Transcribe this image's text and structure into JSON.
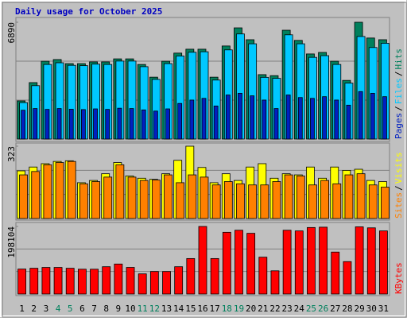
{
  "chart_data": [
    {
      "type": "bar",
      "title": "Daily usage for October 2025",
      "title_color": "#0000c0",
      "ylim": [
        0,
        6890
      ],
      "yticks": [
        6890
      ],
      "legend_separator": "/",
      "series": [
        {
          "name": "Hits",
          "color": "#00805c",
          "values": [
            2250,
            3330,
            4590,
            4690,
            4450,
            4450,
            4550,
            4550,
            4730,
            4730,
            4400,
            3650,
            4590,
            5070,
            5300,
            5300,
            3650,
            5490,
            6560,
            5860,
            3800,
            3740,
            6420,
            5820,
            5020,
            5110,
            4590,
            3460,
            6890,
            5960,
            5860
          ]
        },
        {
          "name": "Files",
          "color": "#00c8ff",
          "values": [
            2150,
            3150,
            4400,
            4500,
            4350,
            4330,
            4420,
            4400,
            4600,
            4600,
            4270,
            3520,
            4450,
            4900,
            5120,
            5150,
            3480,
            5260,
            6200,
            5620,
            3640,
            3580,
            6150,
            5620,
            4820,
            4920,
            4400,
            3300,
            6050,
            5400,
            5650
          ]
        },
        {
          "name": "Pages",
          "color": "#0020c0",
          "values": [
            1700,
            1800,
            1750,
            1800,
            1760,
            1740,
            1780,
            1750,
            1820,
            1800,
            1720,
            1650,
            1780,
            2100,
            2300,
            2400,
            1950,
            2600,
            2700,
            2550,
            2300,
            1800,
            2600,
            2450,
            2400,
            2500,
            2300,
            2000,
            2800,
            2700,
            2500
          ]
        }
      ]
    },
    {
      "type": "bar",
      "ylim": [
        0,
        323
      ],
      "yticks": [
        323
      ],
      "legend_separator": "/",
      "series": [
        {
          "name": "Visits",
          "color": "#ffff00",
          "values": [
            213,
            230,
            245,
            255,
            258,
            160,
            170,
            200,
            250,
            190,
            180,
            175,
            200,
            260,
            323,
            228,
            160,
            200,
            170,
            230,
            245,
            180,
            200,
            195,
            230,
            180,
            230,
            215,
            220,
            170,
            165
          ]
        },
        {
          "name": "Sites",
          "color": "#ff8000",
          "values": [
            195,
            210,
            240,
            250,
            255,
            155,
            165,
            185,
            240,
            185,
            170,
            172,
            195,
            160,
            195,
            185,
            150,
            165,
            155,
            150,
            150,
            165,
            195,
            190,
            150,
            170,
            155,
            195,
            200,
            150,
            140
          ]
        }
      ]
    },
    {
      "type": "bar",
      "ylim": [
        0,
        198104
      ],
      "yticks": [
        198104
      ],
      "series": [
        {
          "name": "KBytes",
          "color": "#ff0000",
          "values": [
            73100,
            75500,
            77900,
            77900,
            75500,
            72700,
            72700,
            80000,
            87900,
            78000,
            59000,
            66000,
            66000,
            80000,
            104000,
            198104,
            104000,
            181000,
            187000,
            178000,
            108000,
            68000,
            187000,
            185000,
            195000,
            196000,
            123000,
            95000,
            197000,
            194000,
            185000
          ]
        }
      ],
      "categories": [
        "1",
        "2",
        "3",
        "4",
        "5",
        "6",
        "7",
        "8",
        "9",
        "10",
        "11",
        "12",
        "13",
        "14",
        "15",
        "16",
        "17",
        "18",
        "19",
        "20",
        "21",
        "22",
        "23",
        "24",
        "25",
        "26",
        "27",
        "28",
        "29",
        "30",
        "31"
      ],
      "category_colors": [
        "#000000",
        "#000000",
        "#000000",
        "#00805c",
        "#00805c",
        "#000000",
        "#000000",
        "#000000",
        "#000000",
        "#000000",
        "#00805c",
        "#00805c",
        "#000000",
        "#000000",
        "#000000",
        "#000000",
        "#000000",
        "#00805c",
        "#00805c",
        "#000000",
        "#000000",
        "#000000",
        "#000000",
        "#000000",
        "#00805c",
        "#00805c",
        "#000000",
        "#000000",
        "#000000",
        "#000000",
        "#000000"
      ]
    }
  ]
}
